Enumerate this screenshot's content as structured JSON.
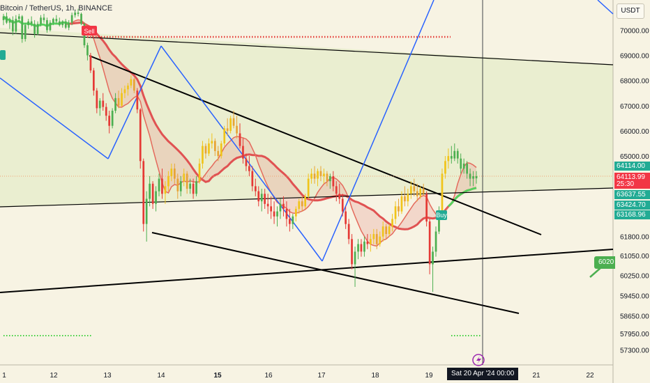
{
  "chart_data": {
    "type": "candlestick",
    "symbol": "Bitcoin / TetherUS, 1h, BINANCE",
    "currency": "USDT",
    "x_ticks": [
      "1",
      "12",
      "13",
      "14",
      "15",
      "16",
      "17",
      "18",
      "19",
      "21",
      "22"
    ],
    "y_ticks": [
      "70000.00",
      "69000.00",
      "68000.00",
      "67000.00",
      "66000.00",
      "65000.00",
      "61800.00",
      "61050.00",
      "60250.00",
      "59450.00",
      "58650.00",
      "57950.00",
      "57300.00"
    ],
    "y_range": [
      56700,
      71200
    ],
    "price_labels": [
      {
        "text": "64114.00",
        "color": "#22ab94"
      },
      {
        "text": "64113.99",
        "color": "#f23645"
      },
      {
        "text": "25:30",
        "color": "#f23645"
      },
      {
        "text": "63637.55",
        "color": "#22ab94"
      },
      {
        "text": "63424.70",
        "color": "#22ab94"
      },
      {
        "text": "63168.96",
        "color": "#22ab94"
      }
    ],
    "crosshair_time": "Sat 20 Apr '24   00:00",
    "signals": {
      "sell": "Sell",
      "buy": "Buy"
    },
    "floating_label": "6020",
    "candles": [
      {
        "o": 70400,
        "h": 70650,
        "l": 70200,
        "c": 70550
      },
      {
        "o": 70550,
        "h": 70700,
        "l": 70250,
        "c": 70300
      },
      {
        "o": 70300,
        "h": 70500,
        "l": 70050,
        "c": 70400
      },
      {
        "o": 70400,
        "h": 70550,
        "l": 69800,
        "c": 69950
      },
      {
        "o": 69950,
        "h": 70600,
        "l": 69850,
        "c": 70450
      },
      {
        "o": 70450,
        "h": 70650,
        "l": 70300,
        "c": 70550
      },
      {
        "o": 70550,
        "h": 70600,
        "l": 69500,
        "c": 69650
      },
      {
        "o": 69650,
        "h": 70300,
        "l": 69550,
        "c": 70200
      },
      {
        "o": 70200,
        "h": 70450,
        "l": 70050,
        "c": 70350
      },
      {
        "o": 70350,
        "h": 70550,
        "l": 70150,
        "c": 70250
      },
      {
        "o": 70250,
        "h": 70400,
        "l": 69700,
        "c": 69850
      },
      {
        "o": 69850,
        "h": 70350,
        "l": 69800,
        "c": 70250
      },
      {
        "o": 70250,
        "h": 70600,
        "l": 70150,
        "c": 70500
      },
      {
        "o": 70500,
        "h": 70650,
        "l": 70300,
        "c": 70400
      },
      {
        "o": 70400,
        "h": 70500,
        "l": 69900,
        "c": 70000
      },
      {
        "o": 70000,
        "h": 70400,
        "l": 69950,
        "c": 70300
      },
      {
        "o": 70300,
        "h": 70500,
        "l": 70200,
        "c": 70450
      },
      {
        "o": 70450,
        "h": 70600,
        "l": 70250,
        "c": 70350
      },
      {
        "o": 70350,
        "h": 70500,
        "l": 70150,
        "c": 70200
      },
      {
        "o": 70200,
        "h": 70400,
        "l": 70100,
        "c": 70350
      },
      {
        "o": 70350,
        "h": 70450,
        "l": 70050,
        "c": 70100
      },
      {
        "o": 70100,
        "h": 70400,
        "l": 70000,
        "c": 70300
      },
      {
        "o": 70300,
        "h": 70700,
        "l": 70200,
        "c": 70600
      },
      {
        "o": 70600,
        "h": 70800,
        "l": 70500,
        "c": 70700
      },
      {
        "o": 70700,
        "h": 70850,
        "l": 70550,
        "c": 70650
      },
      {
        "o": 70650,
        "h": 70700,
        "l": 70200,
        "c": 70250
      },
      {
        "o": 70250,
        "h": 70300,
        "l": 69300,
        "c": 69400
      },
      {
        "o": 69400,
        "h": 69500,
        "l": 68800,
        "c": 69000
      },
      {
        "o": 69000,
        "h": 69100,
        "l": 68300,
        "c": 68400
      },
      {
        "o": 68400,
        "h": 68500,
        "l": 67400,
        "c": 67600
      },
      {
        "o": 67600,
        "h": 67700,
        "l": 66700,
        "c": 66900
      },
      {
        "o": 66900,
        "h": 67300,
        "l": 66600,
        "c": 67200
      },
      {
        "o": 67200,
        "h": 67500,
        "l": 66800,
        "c": 66950
      },
      {
        "o": 66950,
        "h": 67100,
        "l": 66400,
        "c": 66600
      },
      {
        "o": 66600,
        "h": 66800,
        "l": 65900,
        "c": 66200
      },
      {
        "o": 66200,
        "h": 66900,
        "l": 66100,
        "c": 66800
      },
      {
        "o": 66800,
        "h": 67500,
        "l": 66700,
        "c": 67300
      },
      {
        "o": 67300,
        "h": 67600,
        "l": 66900,
        "c": 67000
      },
      {
        "o": 67000,
        "h": 67700,
        "l": 66950,
        "c": 67500
      },
      {
        "o": 67500,
        "h": 67800,
        "l": 67300,
        "c": 67650
      },
      {
        "o": 67650,
        "h": 67900,
        "l": 67400,
        "c": 67800
      },
      {
        "o": 67800,
        "h": 68200,
        "l": 67700,
        "c": 68050
      },
      {
        "o": 68050,
        "h": 68100,
        "l": 67500,
        "c": 67600
      },
      {
        "o": 67600,
        "h": 67700,
        "l": 66700,
        "c": 66850
      },
      {
        "o": 66850,
        "h": 66900,
        "l": 64500,
        "c": 64800
      },
      {
        "o": 64800,
        "h": 64900,
        "l": 62000,
        "c": 62300
      },
      {
        "o": 62300,
        "h": 63600,
        "l": 61600,
        "c": 63300
      },
      {
        "o": 63300,
        "h": 64200,
        "l": 63000,
        "c": 63900
      },
      {
        "o": 63900,
        "h": 64000,
        "l": 62900,
        "c": 63100
      },
      {
        "o": 63100,
        "h": 63800,
        "l": 62800,
        "c": 63600
      },
      {
        "o": 63600,
        "h": 64300,
        "l": 63400,
        "c": 64100
      },
      {
        "o": 64100,
        "h": 64500,
        "l": 63300,
        "c": 63500
      },
      {
        "o": 63500,
        "h": 64000,
        "l": 63100,
        "c": 63800
      },
      {
        "o": 63800,
        "h": 64400,
        "l": 63600,
        "c": 64200
      },
      {
        "o": 64200,
        "h": 64700,
        "l": 64000,
        "c": 64500
      },
      {
        "o": 64500,
        "h": 64700,
        "l": 63900,
        "c": 64100
      },
      {
        "o": 64100,
        "h": 64300,
        "l": 63300,
        "c": 63600
      },
      {
        "o": 63600,
        "h": 64200,
        "l": 63400,
        "c": 64000
      },
      {
        "o": 64000,
        "h": 64500,
        "l": 63800,
        "c": 64300
      },
      {
        "o": 64300,
        "h": 64400,
        "l": 63500,
        "c": 63700
      },
      {
        "o": 63700,
        "h": 64100,
        "l": 63500,
        "c": 63900
      },
      {
        "o": 63900,
        "h": 64100,
        "l": 63300,
        "c": 63500
      },
      {
        "o": 63500,
        "h": 64200,
        "l": 63400,
        "c": 64000
      },
      {
        "o": 64000,
        "h": 64900,
        "l": 63900,
        "c": 64700
      },
      {
        "o": 64700,
        "h": 65600,
        "l": 64500,
        "c": 65400
      },
      {
        "o": 65400,
        "h": 65500,
        "l": 64900,
        "c": 65100
      },
      {
        "o": 65100,
        "h": 65700,
        "l": 65000,
        "c": 65500
      },
      {
        "o": 65500,
        "h": 65900,
        "l": 65300,
        "c": 65600
      },
      {
        "o": 65600,
        "h": 65700,
        "l": 65000,
        "c": 65200
      },
      {
        "o": 65200,
        "h": 65400,
        "l": 64800,
        "c": 65000
      },
      {
        "o": 65000,
        "h": 65600,
        "l": 64900,
        "c": 65500
      },
      {
        "o": 65500,
        "h": 66200,
        "l": 65400,
        "c": 66100
      },
      {
        "o": 66100,
        "h": 66500,
        "l": 65800,
        "c": 66000
      },
      {
        "o": 66000,
        "h": 66600,
        "l": 65900,
        "c": 66500
      },
      {
        "o": 66500,
        "h": 66800,
        "l": 66100,
        "c": 66200
      },
      {
        "o": 66200,
        "h": 66600,
        "l": 65700,
        "c": 65900
      },
      {
        "o": 65900,
        "h": 66300,
        "l": 65300,
        "c": 65400
      },
      {
        "o": 65400,
        "h": 65700,
        "l": 64700,
        "c": 64900
      },
      {
        "o": 64900,
        "h": 65100,
        "l": 64400,
        "c": 64600
      },
      {
        "o": 64600,
        "h": 65000,
        "l": 64200,
        "c": 64400
      },
      {
        "o": 64400,
        "h": 64600,
        "l": 63600,
        "c": 63800
      },
      {
        "o": 63800,
        "h": 64100,
        "l": 63400,
        "c": 63600
      },
      {
        "o": 63600,
        "h": 63800,
        "l": 63000,
        "c": 63200
      },
      {
        "o": 63200,
        "h": 63700,
        "l": 62800,
        "c": 63500
      },
      {
        "o": 63500,
        "h": 63700,
        "l": 62900,
        "c": 63100
      },
      {
        "o": 63100,
        "h": 63500,
        "l": 62700,
        "c": 63000
      },
      {
        "o": 63000,
        "h": 63400,
        "l": 62500,
        "c": 62800
      },
      {
        "o": 62800,
        "h": 63200,
        "l": 62300,
        "c": 62600
      },
      {
        "o": 62600,
        "h": 63000,
        "l": 62200,
        "c": 62800
      },
      {
        "o": 62800,
        "h": 63300,
        "l": 62500,
        "c": 63100
      },
      {
        "o": 63100,
        "h": 63400,
        "l": 62600,
        "c": 62900
      },
      {
        "o": 62900,
        "h": 63200,
        "l": 62200,
        "c": 62500
      },
      {
        "o": 62500,
        "h": 62900,
        "l": 62000,
        "c": 62300
      },
      {
        "o": 62300,
        "h": 62700,
        "l": 62100,
        "c": 62600
      },
      {
        "o": 62600,
        "h": 63000,
        "l": 62400,
        "c": 62900
      },
      {
        "o": 62900,
        "h": 63300,
        "l": 62700,
        "c": 63200
      },
      {
        "o": 63200,
        "h": 63400,
        "l": 62800,
        "c": 63000
      },
      {
        "o": 63000,
        "h": 63500,
        "l": 62900,
        "c": 63400
      },
      {
        "o": 63400,
        "h": 64300,
        "l": 63300,
        "c": 64100
      },
      {
        "o": 64100,
        "h": 64500,
        "l": 63900,
        "c": 64300
      },
      {
        "o": 64300,
        "h": 64600,
        "l": 63900,
        "c": 64100
      },
      {
        "o": 64100,
        "h": 64500,
        "l": 63800,
        "c": 64400
      },
      {
        "o": 64400,
        "h": 64600,
        "l": 64000,
        "c": 64200
      },
      {
        "o": 64200,
        "h": 64500,
        "l": 63900,
        "c": 64300
      },
      {
        "o": 64300,
        "h": 64400,
        "l": 63800,
        "c": 64000
      },
      {
        "o": 64000,
        "h": 64300,
        "l": 63700,
        "c": 64200
      },
      {
        "o": 64200,
        "h": 64400,
        "l": 63600,
        "c": 63800
      },
      {
        "o": 63800,
        "h": 64000,
        "l": 63200,
        "c": 63500
      },
      {
        "o": 63500,
        "h": 63900,
        "l": 63100,
        "c": 63300
      },
      {
        "o": 63300,
        "h": 63500,
        "l": 62600,
        "c": 62800
      },
      {
        "o": 62800,
        "h": 63000,
        "l": 62100,
        "c": 62300
      },
      {
        "o": 62300,
        "h": 62500,
        "l": 61500,
        "c": 61700
      },
      {
        "o": 61700,
        "h": 61900,
        "l": 60500,
        "c": 60700
      },
      {
        "o": 60700,
        "h": 61400,
        "l": 59800,
        "c": 61200
      },
      {
        "o": 61200,
        "h": 61700,
        "l": 60900,
        "c": 61500
      },
      {
        "o": 61500,
        "h": 61700,
        "l": 61000,
        "c": 61200
      },
      {
        "o": 61200,
        "h": 61800,
        "l": 61000,
        "c": 61600
      },
      {
        "o": 61600,
        "h": 61900,
        "l": 61300,
        "c": 61500
      },
      {
        "o": 61500,
        "h": 61900,
        "l": 61200,
        "c": 61700
      },
      {
        "o": 61700,
        "h": 62100,
        "l": 61500,
        "c": 61900
      },
      {
        "o": 61900,
        "h": 62100,
        "l": 61300,
        "c": 61500
      },
      {
        "o": 61500,
        "h": 62000,
        "l": 61400,
        "c": 61800
      },
      {
        "o": 61800,
        "h": 62400,
        "l": 61600,
        "c": 62200
      },
      {
        "o": 62200,
        "h": 62300,
        "l": 61700,
        "c": 61900
      },
      {
        "o": 61900,
        "h": 62300,
        "l": 61800,
        "c": 62200
      },
      {
        "o": 62200,
        "h": 62700,
        "l": 62000,
        "c": 62500
      },
      {
        "o": 62500,
        "h": 63200,
        "l": 62300,
        "c": 63000
      },
      {
        "o": 63000,
        "h": 63300,
        "l": 62600,
        "c": 62800
      },
      {
        "o": 62800,
        "h": 63600,
        "l": 62700,
        "c": 63400
      },
      {
        "o": 63400,
        "h": 63800,
        "l": 63000,
        "c": 63200
      },
      {
        "o": 63200,
        "h": 63700,
        "l": 63000,
        "c": 63500
      },
      {
        "o": 63500,
        "h": 64000,
        "l": 63300,
        "c": 63800
      },
      {
        "o": 63800,
        "h": 64100,
        "l": 63400,
        "c": 63600
      },
      {
        "o": 63600,
        "h": 63900,
        "l": 63200,
        "c": 63400
      },
      {
        "o": 63400,
        "h": 63800,
        "l": 63300,
        "c": 63700
      },
      {
        "o": 63700,
        "h": 63900,
        "l": 63400,
        "c": 63500
      },
      {
        "o": 63500,
        "h": 63600,
        "l": 62200,
        "c": 62400
      },
      {
        "o": 62400,
        "h": 62500,
        "l": 60300,
        "c": 60700
      },
      {
        "o": 60700,
        "h": 61400,
        "l": 59600,
        "c": 61200
      },
      {
        "o": 61200,
        "h": 62200,
        "l": 61000,
        "c": 62000
      },
      {
        "o": 62000,
        "h": 63000,
        "l": 61900,
        "c": 62800
      },
      {
        "o": 62800,
        "h": 64500,
        "l": 62700,
        "c": 64300
      },
      {
        "o": 64300,
        "h": 65000,
        "l": 64100,
        "c": 64800
      },
      {
        "o": 64800,
        "h": 65300,
        "l": 64500,
        "c": 65000
      },
      {
        "o": 65000,
        "h": 65400,
        "l": 64700,
        "c": 64900
      },
      {
        "o": 64900,
        "h": 65500,
        "l": 64800,
        "c": 65200
      },
      {
        "o": 65200,
        "h": 65300,
        "l": 64700,
        "c": 64900
      },
      {
        "o": 64900,
        "h": 65100,
        "l": 64300,
        "c": 64500
      },
      {
        "o": 64500,
        "h": 64900,
        "l": 64300,
        "c": 64700
      },
      {
        "o": 64700,
        "h": 64800,
        "l": 64100,
        "c": 64300
      },
      {
        "o": 64300,
        "h": 64500,
        "l": 63800,
        "c": 64100
      },
      {
        "o": 64100,
        "h": 64400,
        "l": 63800,
        "c": 64200
      },
      {
        "o": 64200,
        "h": 64400,
        "l": 63900,
        "c": 64114
      }
    ]
  }
}
